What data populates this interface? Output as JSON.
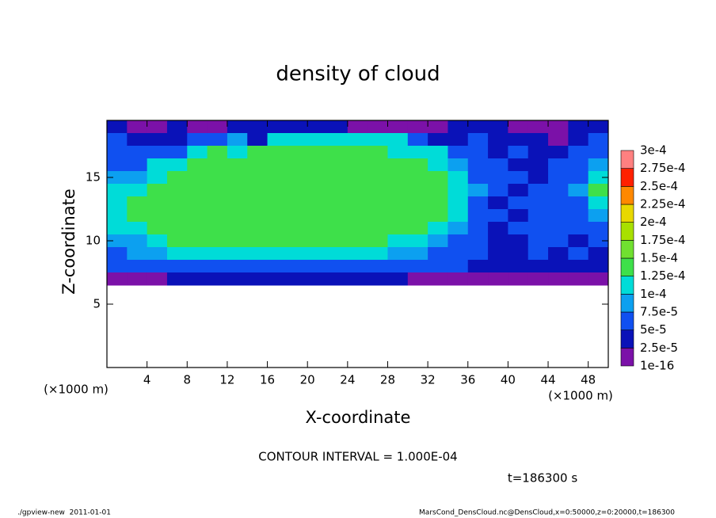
{
  "chart_data": {
    "type": "heatmap",
    "title": "density of cloud",
    "x_label": "X-coordinate",
    "y_label": "Z-coordinate",
    "x_unit": "(×1000 m)",
    "y_unit": "(×1000 m)",
    "xlim": [
      0,
      50
    ],
    "ylim": [
      0,
      19.5
    ],
    "xticks": [
      4,
      8,
      12,
      16,
      20,
      24,
      28,
      32,
      36,
      40,
      44,
      48
    ],
    "yticks": [
      5,
      10,
      15
    ],
    "x": [
      1,
      3,
      5,
      7,
      9,
      11,
      13,
      15,
      17,
      19,
      21,
      23,
      25,
      27,
      29,
      31,
      33,
      35,
      37,
      39,
      41,
      43,
      45,
      47,
      49
    ],
    "y": [
      19,
      18,
      17,
      16,
      15,
      14,
      13,
      12,
      11,
      10,
      9,
      8,
      7
    ],
    "values": [
      [
        3e-05,
        2e-05,
        2e-05,
        3e-05,
        2e-05,
        2e-05,
        3e-05,
        3e-05,
        3e-05,
        3e-05,
        3e-05,
        3e-05,
        2e-05,
        2e-05,
        2e-05,
        2e-05,
        2e-05,
        3e-05,
        3e-05,
        3e-05,
        2e-05,
        2e-05,
        2e-05,
        3e-05,
        3e-05
      ],
      [
        5e-05,
        4e-05,
        4e-05,
        3e-05,
        5e-05,
        6e-05,
        9e-05,
        4e-05,
        0.00012,
        0.00012,
        0.00012,
        0.00012,
        0.00012,
        0.00012,
        0.00011,
        6e-05,
        4e-05,
        4e-05,
        5e-05,
        3e-05,
        3e-05,
        4e-05,
        2e-05,
        4e-05,
        5e-05
      ],
      [
        6e-05,
        5e-05,
        5e-05,
        6e-05,
        0.00012,
        0.00013,
        0.00012,
        0.00013,
        0.00013,
        0.00013,
        0.00013,
        0.00013,
        0.00013,
        0.00013,
        0.00012,
        0.00012,
        0.00011,
        7e-05,
        5e-05,
        4e-05,
        6e-05,
        4e-05,
        4e-05,
        5e-05,
        6e-05
      ],
      [
        7e-05,
        6e-05,
        0.0001,
        0.00012,
        0.00013,
        0.00013,
        0.00013,
        0.00013,
        0.00013,
        0.00013,
        0.00013,
        0.00013,
        0.00013,
        0.00013,
        0.00013,
        0.00013,
        0.00012,
        9e-05,
        6e-05,
        5e-05,
        4e-05,
        3e-05,
        5e-05,
        6e-05,
        8e-05
      ],
      [
        8e-05,
        9e-05,
        0.00012,
        0.00013,
        0.00013,
        0.00014,
        0.00013,
        0.00013,
        0.00013,
        0.00013,
        0.00013,
        0.00013,
        0.00013,
        0.00013,
        0.00013,
        0.00013,
        0.00013,
        0.00011,
        7e-05,
        5e-05,
        6e-05,
        4e-05,
        5e-05,
        7e-05,
        0.00012
      ],
      [
        0.0001,
        0.00012,
        0.00013,
        0.00013,
        0.00013,
        0.00014,
        0.00014,
        0.00013,
        0.00013,
        0.00013,
        0.00013,
        0.00013,
        0.00013,
        0.00013,
        0.00013,
        0.00013,
        0.00013,
        0.00012,
        8e-05,
        5e-05,
        4e-05,
        5e-05,
        6e-05,
        8e-05,
        0.00013
      ],
      [
        0.00012,
        0.00013,
        0.00013,
        0.00013,
        0.00013,
        0.00013,
        0.00013,
        0.00013,
        0.00014,
        0.00014,
        0.00014,
        0.00014,
        0.00013,
        0.00013,
        0.00013,
        0.00013,
        0.00013,
        0.00012,
        7e-05,
        4e-05,
        5e-05,
        6e-05,
        5e-05,
        7e-05,
        0.00012
      ],
      [
        0.00012,
        0.00013,
        0.00013,
        0.00013,
        0.00013,
        0.00013,
        0.00013,
        0.00013,
        0.00013,
        0.00013,
        0.00013,
        0.00013,
        0.00013,
        0.00013,
        0.00013,
        0.00013,
        0.00013,
        0.0001,
        6e-05,
        5e-05,
        4e-05,
        5e-05,
        6e-05,
        6e-05,
        9e-05
      ],
      [
        0.0001,
        0.00012,
        0.00013,
        0.00013,
        0.00013,
        0.00013,
        0.00013,
        0.00013,
        0.00013,
        0.00013,
        0.00013,
        0.00013,
        0.00013,
        0.00013,
        0.00013,
        0.00013,
        0.00011,
        8e-05,
        6e-05,
        4e-05,
        5e-05,
        6e-05,
        5e-05,
        5e-05,
        6e-05
      ],
      [
        8e-05,
        9e-05,
        0.00011,
        0.00013,
        0.00013,
        0.00013,
        0.00013,
        0.00013,
        0.00013,
        0.00013,
        0.00013,
        0.00013,
        0.00013,
        0.00013,
        0.00012,
        0.00011,
        9e-05,
        7e-05,
        5e-05,
        4e-05,
        3e-05,
        5e-05,
        6e-05,
        4e-05,
        5e-05
      ],
      [
        7e-05,
        8e-05,
        9e-05,
        0.0001,
        0.00012,
        0.00012,
        0.00012,
        0.00012,
        0.00012,
        0.00012,
        0.00012,
        0.00012,
        0.00012,
        0.00012,
        9e-05,
        8e-05,
        7e-05,
        6e-05,
        5e-05,
        4e-05,
        4e-05,
        5e-05,
        4e-05,
        5e-05,
        4e-05
      ],
      [
        5e-05,
        6e-05,
        6e-05,
        7e-05,
        7e-05,
        7e-05,
        7e-05,
        7e-05,
        7e-05,
        7e-05,
        7e-05,
        7e-05,
        7e-05,
        7e-05,
        6e-05,
        5e-05,
        5e-05,
        5e-05,
        4e-05,
        4e-05,
        4e-05,
        4e-05,
        3e-05,
        4e-05,
        4e-05
      ],
      [
        2e-05,
        2e-05,
        2e-05,
        3e-05,
        3e-05,
        3e-05,
        3e-05,
        3e-05,
        3e-05,
        3e-05,
        3e-05,
        3e-05,
        3e-05,
        3e-05,
        3e-05,
        2e-05,
        2e-05,
        2e-05,
        2e-05,
        2e-05,
        2e-05,
        2e-05,
        2e-05,
        2e-05,
        2e-05
      ]
    ],
    "levels": [
      {
        "value": 1e-16,
        "label": "1e-16"
      },
      {
        "value": 2.5e-05,
        "label": "2.5e-5"
      },
      {
        "value": 5e-05,
        "label": "5e-5"
      },
      {
        "value": 7.5e-05,
        "label": "7.5e-5"
      },
      {
        "value": 0.0001,
        "label": "1e-4"
      },
      {
        "value": 0.000125,
        "label": "1.25e-4"
      },
      {
        "value": 0.00015,
        "label": "1.5e-4"
      },
      {
        "value": 0.000175,
        "label": "1.75e-4"
      },
      {
        "value": 0.0002,
        "label": "2e-4"
      },
      {
        "value": 0.000225,
        "label": "2.25e-4"
      },
      {
        "value": 0.00025,
        "label": "2.5e-4"
      },
      {
        "value": 0.000275,
        "label": "2.75e-4"
      },
      {
        "value": 0.0003,
        "label": "3e-4"
      }
    ],
    "colors": [
      "#7b11a8",
      "#0a12b8",
      "#1050f0",
      "#0ca0f0",
      "#00dcd8",
      "#3ee04a",
      "#70e030",
      "#a8e000",
      "#e8d800",
      "#ff8800",
      "#ff2000",
      "#ff8080"
    ],
    "contour_note": "CONTOUR INTERVAL = 1.000E-04",
    "time_note": "t=186300 s",
    "footer_left": "./gpview-new  2011-01-01",
    "footer_right": "MarsCond_DensCloud.nc@DensCloud,x=0:50000,z=0:20000,t=186300"
  }
}
